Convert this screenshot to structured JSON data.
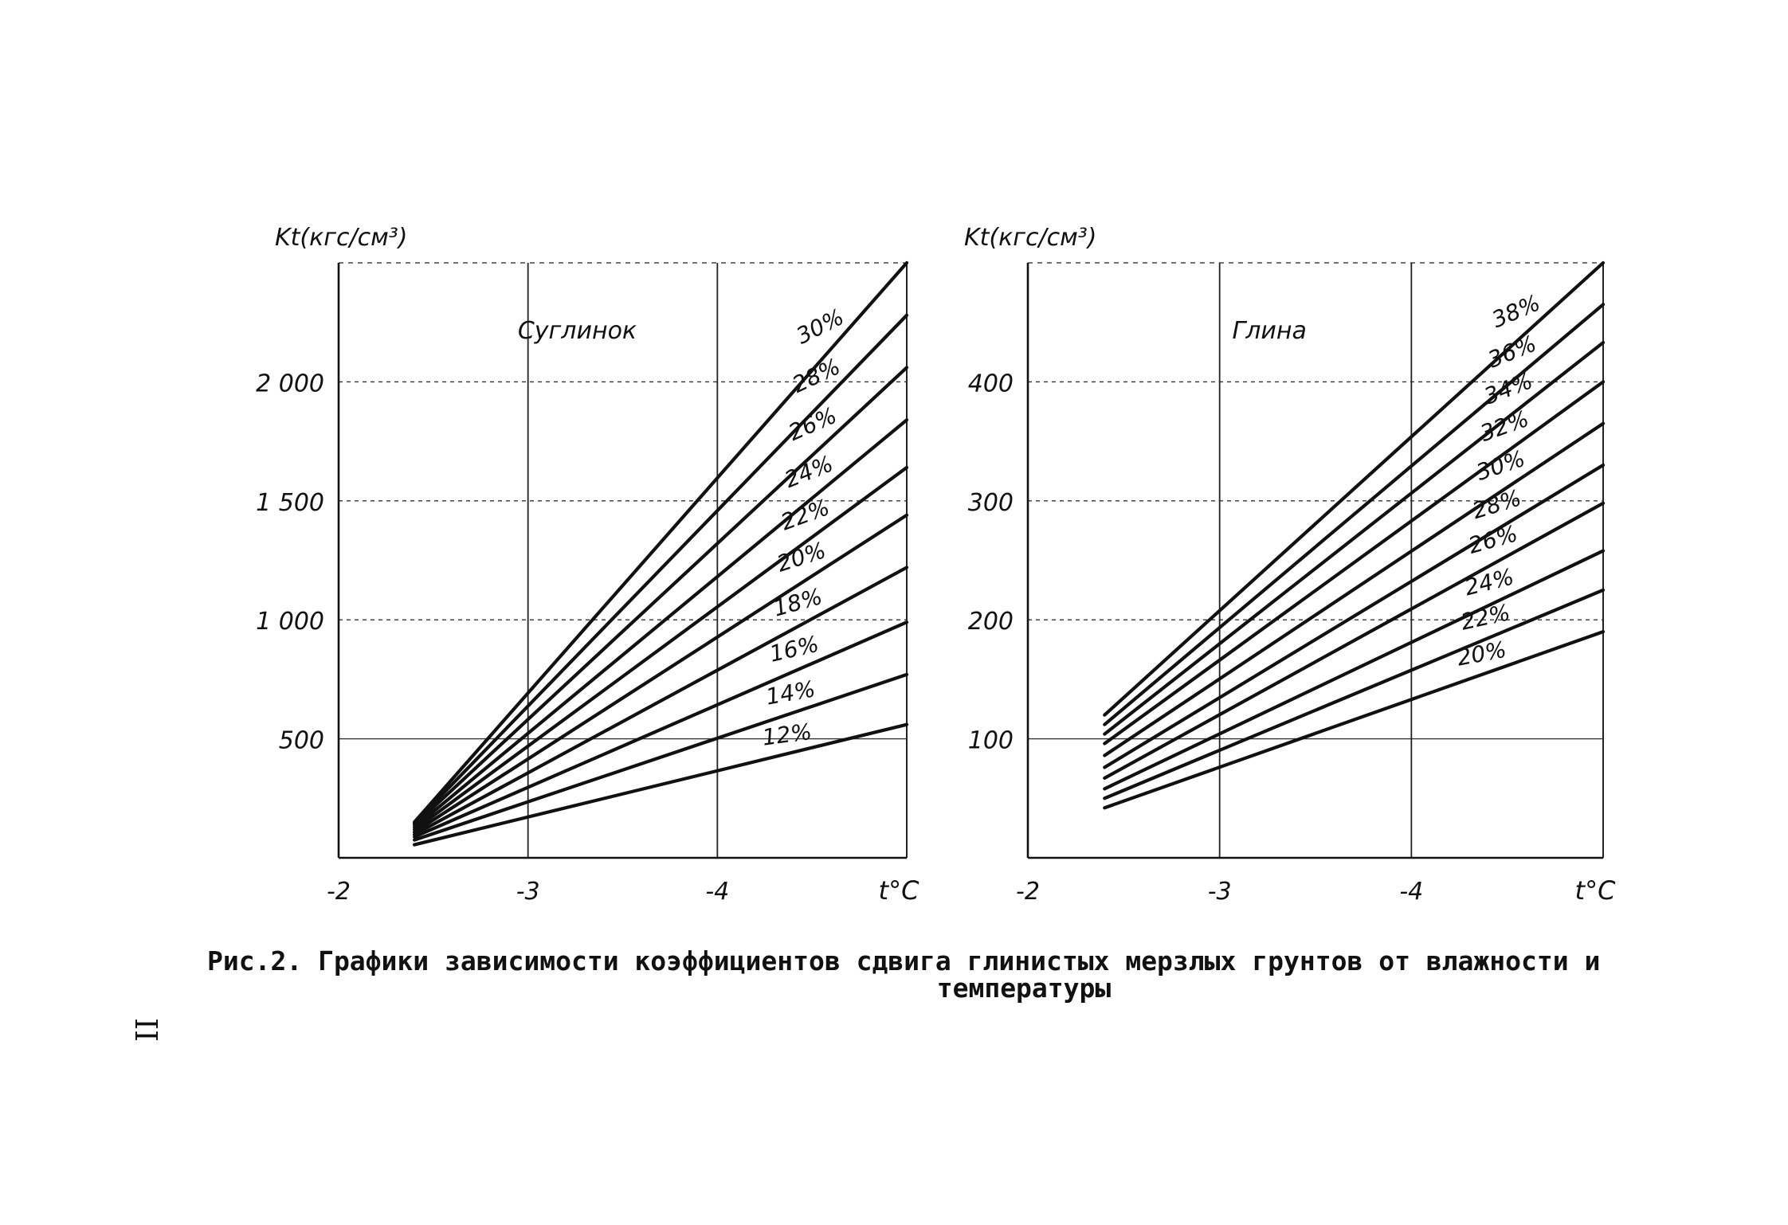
{
  "caption": {
    "line1": "Рис.2. Графики зависимости коэффициентов сдвига глинистых мерзлых грунтов от влажности и",
    "line2": "температуры"
  },
  "page_number": "II",
  "chart_data": [
    {
      "type": "line",
      "panel_label": "Суглинок",
      "ylabel": "Kt(кгс/см³)",
      "xlabel": "t°C",
      "x_ticks": [
        "-2",
        "-3",
        "-4"
      ],
      "y_ticks": [
        "500",
        "1 000",
        "1 500",
        "2 000"
      ],
      "y_tick_values": [
        500,
        1000,
        1500,
        2000
      ],
      "x_tick_values": [
        2,
        3,
        4
      ],
      "xlim": [
        2,
        5
      ],
      "ylim": [
        0,
        2500
      ],
      "x_start": 2.4,
      "grid": true,
      "series": [
        {
          "name": "30%",
          "start": 150,
          "end": 2500
        },
        {
          "name": "28%",
          "start": 145,
          "end": 2280
        },
        {
          "name": "26%",
          "start": 138,
          "end": 2060
        },
        {
          "name": "24%",
          "start": 128,
          "end": 1840
        },
        {
          "name": "22%",
          "start": 118,
          "end": 1640
        },
        {
          "name": "20%",
          "start": 108,
          "end": 1440
        },
        {
          "name": "18%",
          "start": 98,
          "end": 1220
        },
        {
          "name": "16%",
          "start": 88,
          "end": 990
        },
        {
          "name": "14%",
          "start": 75,
          "end": 770
        },
        {
          "name": "12%",
          "start": 55,
          "end": 560
        }
      ]
    },
    {
      "type": "line",
      "panel_label": "Глина",
      "ylabel": "Kt(кгс/см³)",
      "xlabel": "t°C",
      "x_ticks": [
        "-2",
        "-3",
        "-4"
      ],
      "y_ticks": [
        "100",
        "200",
        "300",
        "400"
      ],
      "y_tick_values": [
        100,
        200,
        300,
        400
      ],
      "x_tick_values": [
        2,
        3,
        4
      ],
      "xlim": [
        2,
        5
      ],
      "ylim": [
        0,
        500
      ],
      "x_start": 2.4,
      "grid": true,
      "series": [
        {
          "name": "38%",
          "start": 120,
          "end": 500
        },
        {
          "name": "36%",
          "start": 112,
          "end": 465
        },
        {
          "name": "34%",
          "start": 104,
          "end": 433
        },
        {
          "name": "32%",
          "start": 96,
          "end": 400
        },
        {
          "name": "30%",
          "start": 86,
          "end": 365
        },
        {
          "name": "28%",
          "start": 76,
          "end": 330
        },
        {
          "name": "26%",
          "start": 67,
          "end": 298
        },
        {
          "name": "24%",
          "start": 58,
          "end": 258
        },
        {
          "name": "22%",
          "start": 50,
          "end": 225
        },
        {
          "name": "20%",
          "start": 42,
          "end": 190
        }
      ]
    }
  ]
}
